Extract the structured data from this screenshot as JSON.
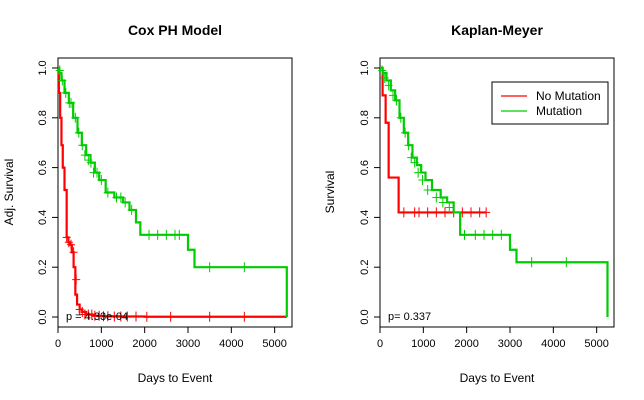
{
  "chart_data": [
    {
      "type": "line",
      "title": "Cox PH Model",
      "xlabel": "Days to Event",
      "ylabel": "Adj. Survival",
      "xlim": [
        0,
        5400
      ],
      "ylim": [
        0,
        1.0
      ],
      "xticks": [
        0,
        1000,
        2000,
        3000,
        4000,
        5000
      ],
      "yticks": [
        0.0,
        0.2,
        0.4,
        0.6,
        0.8,
        1.0
      ],
      "annotation": "p = 4.33e-04",
      "series": [
        {
          "color": "#ff0000",
          "x": [
            0,
            20,
            50,
            80,
            110,
            150,
            200,
            240,
            280,
            320,
            360,
            400,
            440,
            500,
            560,
            650,
            800,
            1000,
            1400,
            2000,
            3000,
            5280
          ],
          "y": [
            1.0,
            0.9,
            0.8,
            0.69,
            0.6,
            0.51,
            0.32,
            0.3,
            0.29,
            0.26,
            0.2,
            0.09,
            0.05,
            0.03,
            0.02,
            0.01,
            0.005,
            0.003,
            0.002,
            0.001,
            0.001,
            0.001
          ],
          "censor_x": [
            200,
            250,
            300,
            360,
            420,
            500,
            560,
            620,
            700,
            780,
            850,
            950,
            1050,
            1150,
            1300,
            1450,
            1600,
            1800,
            2050,
            2600,
            3500,
            4300
          ],
          "censor_y": [
            0.32,
            0.3,
            0.29,
            0.26,
            0.15,
            0.03,
            0.02,
            0.01,
            0.01,
            0.01,
            0.005,
            0.005,
            0.003,
            0.003,
            0.002,
            0.002,
            0.002,
            0.002,
            0.001,
            0.001,
            0.001,
            0.001
          ]
        },
        {
          "color": "#00cc00",
          "x": [
            0,
            30,
            80,
            150,
            250,
            350,
            450,
            550,
            650,
            750,
            850,
            950,
            1100,
            1300,
            1500,
            1650,
            1800,
            1900,
            3000,
            3150,
            5280
          ],
          "y": [
            1.0,
            0.98,
            0.95,
            0.9,
            0.86,
            0.8,
            0.74,
            0.69,
            0.65,
            0.62,
            0.58,
            0.55,
            0.5,
            0.48,
            0.46,
            0.43,
            0.38,
            0.33,
            0.27,
            0.2,
            0.0
          ],
          "censor_x": [
            40,
            100,
            180,
            260,
            300,
            400,
            480,
            560,
            620,
            700,
            760,
            820,
            900,
            1000,
            1150,
            1350,
            1450,
            1550,
            1700,
            2100,
            2300,
            2500,
            2700,
            2800,
            3500,
            4300
          ],
          "censor_y": [
            0.99,
            0.95,
            0.9,
            0.86,
            0.86,
            0.8,
            0.74,
            0.69,
            0.65,
            0.63,
            0.62,
            0.58,
            0.58,
            0.55,
            0.5,
            0.48,
            0.48,
            0.46,
            0.43,
            0.33,
            0.33,
            0.33,
            0.33,
            0.33,
            0.2,
            0.2
          ]
        }
      ]
    },
    {
      "type": "line",
      "title": "Kaplan-Meyer",
      "xlabel": "Days to Event",
      "ylabel": "Survival",
      "xlim": [
        0,
        5400
      ],
      "ylim": [
        0,
        1.0
      ],
      "xticks": [
        0,
        1000,
        2000,
        3000,
        4000,
        5000
      ],
      "yticks": [
        0.0,
        0.2,
        0.4,
        0.6,
        0.8,
        1.0
      ],
      "annotation": "p= 0.337",
      "legend": {
        "placement": "top-right",
        "entries": [
          {
            "label": "No Mutation",
            "color": "#ff0000"
          },
          {
            "label": "Mutation",
            "color": "#00cc00"
          }
        ]
      },
      "series": [
        {
          "color": "#ff0000",
          "x": [
            0,
            60,
            130,
            200,
            430,
            2450
          ],
          "y": [
            1.0,
            0.89,
            0.78,
            0.56,
            0.42,
            0.42
          ],
          "censor_x": [
            550,
            800,
            900,
            1100,
            1300,
            1500,
            1700,
            1900,
            2100,
            2300,
            2450
          ],
          "censor_y": [
            0.42,
            0.42,
            0.42,
            0.42,
            0.42,
            0.42,
            0.42,
            0.42,
            0.42,
            0.42,
            0.42
          ]
        },
        {
          "color": "#00cc00",
          "x": [
            0,
            60,
            150,
            250,
            350,
            450,
            550,
            650,
            750,
            850,
            950,
            1050,
            1200,
            1400,
            1550,
            1700,
            1850,
            3000,
            3150,
            5250
          ],
          "y": [
            1.0,
            0.98,
            0.95,
            0.91,
            0.87,
            0.8,
            0.74,
            0.69,
            0.64,
            0.61,
            0.58,
            0.55,
            0.51,
            0.48,
            0.46,
            0.42,
            0.33,
            0.27,
            0.22,
            0.0
          ],
          "censor_x": [
            50,
            110,
            200,
            300,
            380,
            480,
            580,
            660,
            720,
            800,
            880,
            980,
            1100,
            1300,
            1450,
            1600,
            1950,
            2200,
            2400,
            2600,
            2800,
            3500,
            4300
          ],
          "censor_y": [
            0.99,
            0.96,
            0.93,
            0.89,
            0.87,
            0.8,
            0.74,
            0.69,
            0.64,
            0.62,
            0.58,
            0.55,
            0.51,
            0.48,
            0.46,
            0.44,
            0.33,
            0.33,
            0.33,
            0.33,
            0.33,
            0.22,
            0.22
          ]
        }
      ]
    }
  ]
}
